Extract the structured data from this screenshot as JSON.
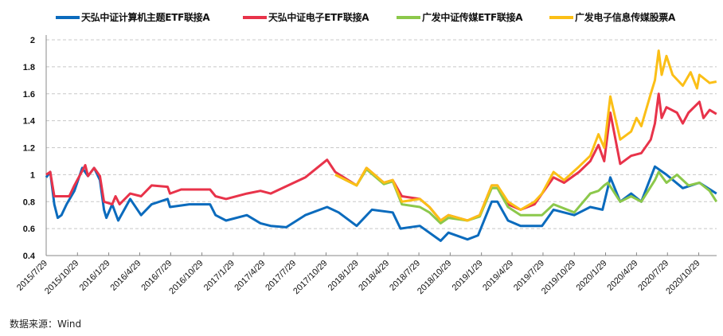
{
  "chart_data": {
    "type": "line",
    "title": "",
    "xlabel": "",
    "ylabel": "",
    "ylim": [
      0.4,
      2
    ],
    "yticks": [
      "2",
      "1.8",
      "1.6",
      "1.4",
      "1.2",
      "1",
      "0.8",
      "0.6",
      "0.4"
    ],
    "xticks": [
      "2015/7/29",
      "2015/10/29",
      "2016/1/29",
      "2016/4/29",
      "2016/7/29",
      "2016/10/29",
      "2017/1/29",
      "2017/4/29",
      "2017/7/29",
      "2017/10/29",
      "2018/1/29",
      "2018/4/29",
      "2018/7/29",
      "2018/10/29",
      "2019/1/29",
      "2019/4/29",
      "2019/7/29",
      "2019/10/29",
      "2020/1/29",
      "2020/4/29",
      "2020/7/29",
      "2020/10/29"
    ],
    "grid": "horizontal dashed",
    "legend_position": "top",
    "series": [
      {
        "name": "天弘中证计算机主题ETF联接A",
        "color": "#0b6bbd",
        "points": [
          [
            "2015-07-29",
            0.98
          ],
          [
            "2015-08-10",
            1.02
          ],
          [
            "2015-08-22",
            0.78
          ],
          [
            "2015-09-01",
            0.68
          ],
          [
            "2015-09-12",
            0.7
          ],
          [
            "2015-09-27",
            0.78
          ],
          [
            "2015-10-20",
            0.88
          ],
          [
            "2015-11-12",
            1.05
          ],
          [
            "2015-11-29",
            0.99
          ],
          [
            "2015-12-17",
            1.05
          ],
          [
            "2016-01-03",
            0.96
          ],
          [
            "2016-01-15",
            0.74
          ],
          [
            "2016-01-22",
            0.68
          ],
          [
            "2016-02-08",
            0.78
          ],
          [
            "2016-02-26",
            0.66
          ],
          [
            "2016-04-01",
            0.82
          ],
          [
            "2016-05-03",
            0.7
          ],
          [
            "2016-06-03",
            0.78
          ],
          [
            "2016-07-20",
            0.82
          ],
          [
            "2016-07-27",
            0.76
          ],
          [
            "2016-09-22",
            0.78
          ],
          [
            "2016-11-22",
            0.78
          ],
          [
            "2016-12-08",
            0.7
          ],
          [
            "2017-01-08",
            0.66
          ],
          [
            "2017-03-10",
            0.7
          ],
          [
            "2017-04-19",
            0.64
          ],
          [
            "2017-05-19",
            0.62
          ],
          [
            "2017-07-04",
            0.61
          ],
          [
            "2017-08-29",
            0.7
          ],
          [
            "2017-11-01",
            0.76
          ],
          [
            "2017-12-05",
            0.72
          ],
          [
            "2018-01-27",
            0.62
          ],
          [
            "2018-03-13",
            0.74
          ],
          [
            "2018-05-13",
            0.72
          ],
          [
            "2018-06-05",
            0.6
          ],
          [
            "2018-08-01",
            0.62
          ],
          [
            "2018-10-01",
            0.51
          ],
          [
            "2018-10-24",
            0.57
          ],
          [
            "2018-12-19",
            0.52
          ],
          [
            "2019-01-19",
            0.55
          ],
          [
            "2019-02-28",
            0.8
          ],
          [
            "2019-03-17",
            0.8
          ],
          [
            "2019-04-17",
            0.66
          ],
          [
            "2019-05-24",
            0.62
          ],
          [
            "2019-07-26",
            0.62
          ],
          [
            "2019-08-29",
            0.74
          ],
          [
            "2019-10-29",
            0.7
          ],
          [
            "2019-12-15",
            0.76
          ],
          [
            "2020-01-20",
            0.74
          ],
          [
            "2020-02-12",
            0.98
          ],
          [
            "2020-03-12",
            0.8
          ],
          [
            "2020-04-13",
            0.86
          ],
          [
            "2020-05-13",
            0.8
          ],
          [
            "2020-06-22",
            1.06
          ],
          [
            "2020-07-26",
            1.0
          ],
          [
            "2020-09-12",
            0.9
          ],
          [
            "2020-10-31",
            0.94
          ],
          [
            "2020-12-20",
            0.86
          ]
        ]
      },
      {
        "name": "天弘中证电子ETF联接A",
        "color": "#e8334a",
        "points": [
          [
            "2015-07-29",
            1.0
          ],
          [
            "2015-08-10",
            1.02
          ],
          [
            "2015-08-22",
            0.84
          ],
          [
            "2015-09-12",
            0.84
          ],
          [
            "2015-10-05",
            0.84
          ],
          [
            "2015-10-20",
            0.92
          ],
          [
            "2015-11-21",
            1.07
          ],
          [
            "2015-11-29",
            0.99
          ],
          [
            "2015-12-17",
            1.05
          ],
          [
            "2016-01-03",
            0.99
          ],
          [
            "2016-01-15",
            0.8
          ],
          [
            "2016-02-08",
            0.78
          ],
          [
            "2016-02-18",
            0.84
          ],
          [
            "2016-03-01",
            0.78
          ],
          [
            "2016-04-01",
            0.86
          ],
          [
            "2016-05-03",
            0.84
          ],
          [
            "2016-06-03",
            0.92
          ],
          [
            "2016-07-20",
            0.91
          ],
          [
            "2016-07-27",
            0.86
          ],
          [
            "2016-08-29",
            0.89
          ],
          [
            "2016-11-22",
            0.89
          ],
          [
            "2016-12-08",
            0.84
          ],
          [
            "2017-01-08",
            0.82
          ],
          [
            "2017-03-10",
            0.86
          ],
          [
            "2017-04-19",
            0.88
          ],
          [
            "2017-05-19",
            0.86
          ],
          [
            "2017-08-29",
            0.98
          ],
          [
            "2017-11-01",
            1.11
          ],
          [
            "2017-11-25",
            1.02
          ],
          [
            "2018-01-27",
            0.92
          ],
          [
            "2018-02-25",
            1.05
          ],
          [
            "2018-04-17",
            0.94
          ],
          [
            "2018-05-13",
            0.96
          ],
          [
            "2018-06-09",
            0.84
          ],
          [
            "2018-08-01",
            0.82
          ],
          [
            "2018-08-29",
            0.76
          ],
          [
            "2018-10-01",
            0.66
          ],
          [
            "2018-10-24",
            0.7
          ],
          [
            "2018-12-19",
            0.66
          ],
          [
            "2019-01-24",
            0.7
          ],
          [
            "2019-02-28",
            0.92
          ],
          [
            "2019-03-17",
            0.92
          ],
          [
            "2019-04-17",
            0.78
          ],
          [
            "2019-05-24",
            0.74
          ],
          [
            "2019-07-04",
            0.78
          ],
          [
            "2019-08-29",
            0.98
          ],
          [
            "2019-09-29",
            0.94
          ],
          [
            "2019-11-12",
            1.02
          ],
          [
            "2019-12-15",
            1.1
          ],
          [
            "2020-01-08",
            1.22
          ],
          [
            "2020-01-25",
            1.1
          ],
          [
            "2020-02-12",
            1.46
          ],
          [
            "2020-03-12",
            1.08
          ],
          [
            "2020-04-13",
            1.14
          ],
          [
            "2020-05-13",
            1.16
          ],
          [
            "2020-06-10",
            1.26
          ],
          [
            "2020-06-22",
            1.38
          ],
          [
            "2020-07-03",
            1.6
          ],
          [
            "2020-07-12",
            1.42
          ],
          [
            "2020-07-26",
            1.5
          ],
          [
            "2020-08-26",
            1.46
          ],
          [
            "2020-09-12",
            1.38
          ],
          [
            "2020-09-29",
            1.46
          ],
          [
            "2020-10-31",
            1.54
          ],
          [
            "2020-11-12",
            1.42
          ],
          [
            "2020-11-30",
            1.48
          ],
          [
            "2020-12-20",
            1.45
          ]
        ]
      },
      {
        "name": "广发中证传媒ETF联接A",
        "color": "#8cc84b",
        "points": [
          [
            "2017-11-25",
            1.0
          ],
          [
            "2018-01-27",
            0.92
          ],
          [
            "2018-02-25",
            1.04
          ],
          [
            "2018-04-17",
            0.93
          ],
          [
            "2018-05-13",
            0.95
          ],
          [
            "2018-06-09",
            0.78
          ],
          [
            "2018-08-01",
            0.76
          ],
          [
            "2018-08-29",
            0.72
          ],
          [
            "2018-10-01",
            0.64
          ],
          [
            "2018-10-24",
            0.68
          ],
          [
            "2018-12-19",
            0.66
          ],
          [
            "2019-01-24",
            0.69
          ],
          [
            "2019-02-28",
            0.9
          ],
          [
            "2019-03-17",
            0.9
          ],
          [
            "2019-04-17",
            0.76
          ],
          [
            "2019-05-24",
            0.7
          ],
          [
            "2019-07-26",
            0.7
          ],
          [
            "2019-08-29",
            0.78
          ],
          [
            "2019-10-29",
            0.72
          ],
          [
            "2019-12-15",
            0.86
          ],
          [
            "2020-01-08",
            0.88
          ],
          [
            "2020-01-25",
            0.92
          ],
          [
            "2020-02-05",
            0.94
          ],
          [
            "2020-03-12",
            0.8
          ],
          [
            "2020-04-13",
            0.84
          ],
          [
            "2020-05-13",
            0.8
          ],
          [
            "2020-06-22",
            0.96
          ],
          [
            "2020-07-03",
            1.02
          ],
          [
            "2020-07-26",
            0.94
          ],
          [
            "2020-08-26",
            1.0
          ],
          [
            "2020-09-29",
            0.92
          ],
          [
            "2020-10-31",
            0.94
          ],
          [
            "2020-11-30",
            0.88
          ],
          [
            "2020-12-20",
            0.8
          ]
        ]
      },
      {
        "name": "广发电子信息传媒股票A",
        "color": "#fbbf16",
        "points": [
          [
            "2017-11-25",
            1.0
          ],
          [
            "2018-01-27",
            0.92
          ],
          [
            "2018-02-25",
            1.05
          ],
          [
            "2018-04-17",
            0.94
          ],
          [
            "2018-05-13",
            0.96
          ],
          [
            "2018-06-09",
            0.8
          ],
          [
            "2018-08-01",
            0.82
          ],
          [
            "2018-08-29",
            0.76
          ],
          [
            "2018-10-01",
            0.66
          ],
          [
            "2018-10-24",
            0.7
          ],
          [
            "2018-12-19",
            0.66
          ],
          [
            "2019-01-24",
            0.7
          ],
          [
            "2019-02-28",
            0.92
          ],
          [
            "2019-03-17",
            0.92
          ],
          [
            "2019-04-17",
            0.8
          ],
          [
            "2019-05-24",
            0.74
          ],
          [
            "2019-07-04",
            0.8
          ],
          [
            "2019-07-26",
            0.86
          ],
          [
            "2019-08-29",
            1.02
          ],
          [
            "2019-09-29",
            0.96
          ],
          [
            "2019-11-12",
            1.06
          ],
          [
            "2019-12-15",
            1.14
          ],
          [
            "2020-01-08",
            1.3
          ],
          [
            "2020-01-25",
            1.2
          ],
          [
            "2020-02-12",
            1.58
          ],
          [
            "2020-03-12",
            1.26
          ],
          [
            "2020-04-13",
            1.32
          ],
          [
            "2020-04-29",
            1.42
          ],
          [
            "2020-05-13",
            1.36
          ],
          [
            "2020-06-10",
            1.6
          ],
          [
            "2020-06-22",
            1.7
          ],
          [
            "2020-07-03",
            1.92
          ],
          [
            "2020-07-12",
            1.74
          ],
          [
            "2020-07-26",
            1.88
          ],
          [
            "2020-08-13",
            1.74
          ],
          [
            "2020-09-12",
            1.66
          ],
          [
            "2020-10-05",
            1.76
          ],
          [
            "2020-10-24",
            1.64
          ],
          [
            "2020-10-31",
            1.74
          ],
          [
            "2020-11-30",
            1.68
          ],
          [
            "2020-12-20",
            1.69
          ]
        ]
      }
    ]
  },
  "source": "数据来源：Wind"
}
